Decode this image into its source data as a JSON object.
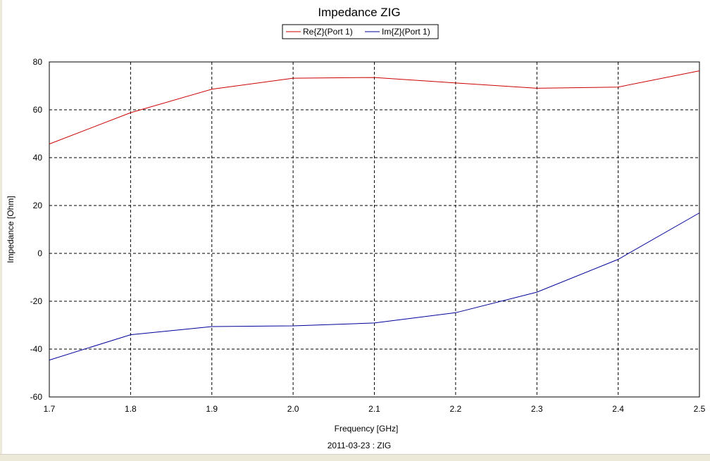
{
  "chart_data": {
    "type": "line",
    "title": "Impedance ZIG",
    "xlabel": "Frequency [GHz]",
    "ylabel": "Impedance [Ohm]",
    "footer": "2011-03-23 : ZIG",
    "xlim": [
      1.7,
      2.5
    ],
    "ylim": [
      -60,
      80
    ],
    "xticks": [
      1.7,
      1.8,
      1.9,
      2.0,
      2.1,
      2.2,
      2.3,
      2.4,
      2.5
    ],
    "xtick_labels": [
      "1.7",
      "1.8",
      "1.9",
      "2.0",
      "2.1",
      "2.2",
      "2.3",
      "2.4",
      "2.5"
    ],
    "yticks": [
      -60,
      -40,
      -20,
      0,
      20,
      40,
      60,
      80
    ],
    "ytick_labels": [
      "-60",
      "-40",
      "-20",
      "0",
      "20",
      "40",
      "60",
      "80"
    ],
    "grid": true,
    "legend_position": "top-center",
    "series": [
      {
        "name": "Re{Z}(Port 1)",
        "color": "#cc0000",
        "x": [
          1.7,
          1.8,
          1.9,
          2.0,
          2.1,
          2.2,
          2.3,
          2.4,
          2.5
        ],
        "y": [
          45.7,
          58.8,
          68.6,
          73.2,
          73.5,
          71.2,
          69.0,
          69.5,
          76.3
        ]
      },
      {
        "name": "Im{Z}(Port 1)",
        "color": "#000099",
        "x": [
          1.7,
          1.8,
          1.9,
          2.0,
          2.1,
          2.2,
          2.3,
          2.4,
          2.5
        ],
        "y": [
          -44.6,
          -34.0,
          -30.6,
          -30.3,
          -29.1,
          -24.8,
          -16.2,
          -2.5,
          16.9
        ]
      }
    ]
  }
}
